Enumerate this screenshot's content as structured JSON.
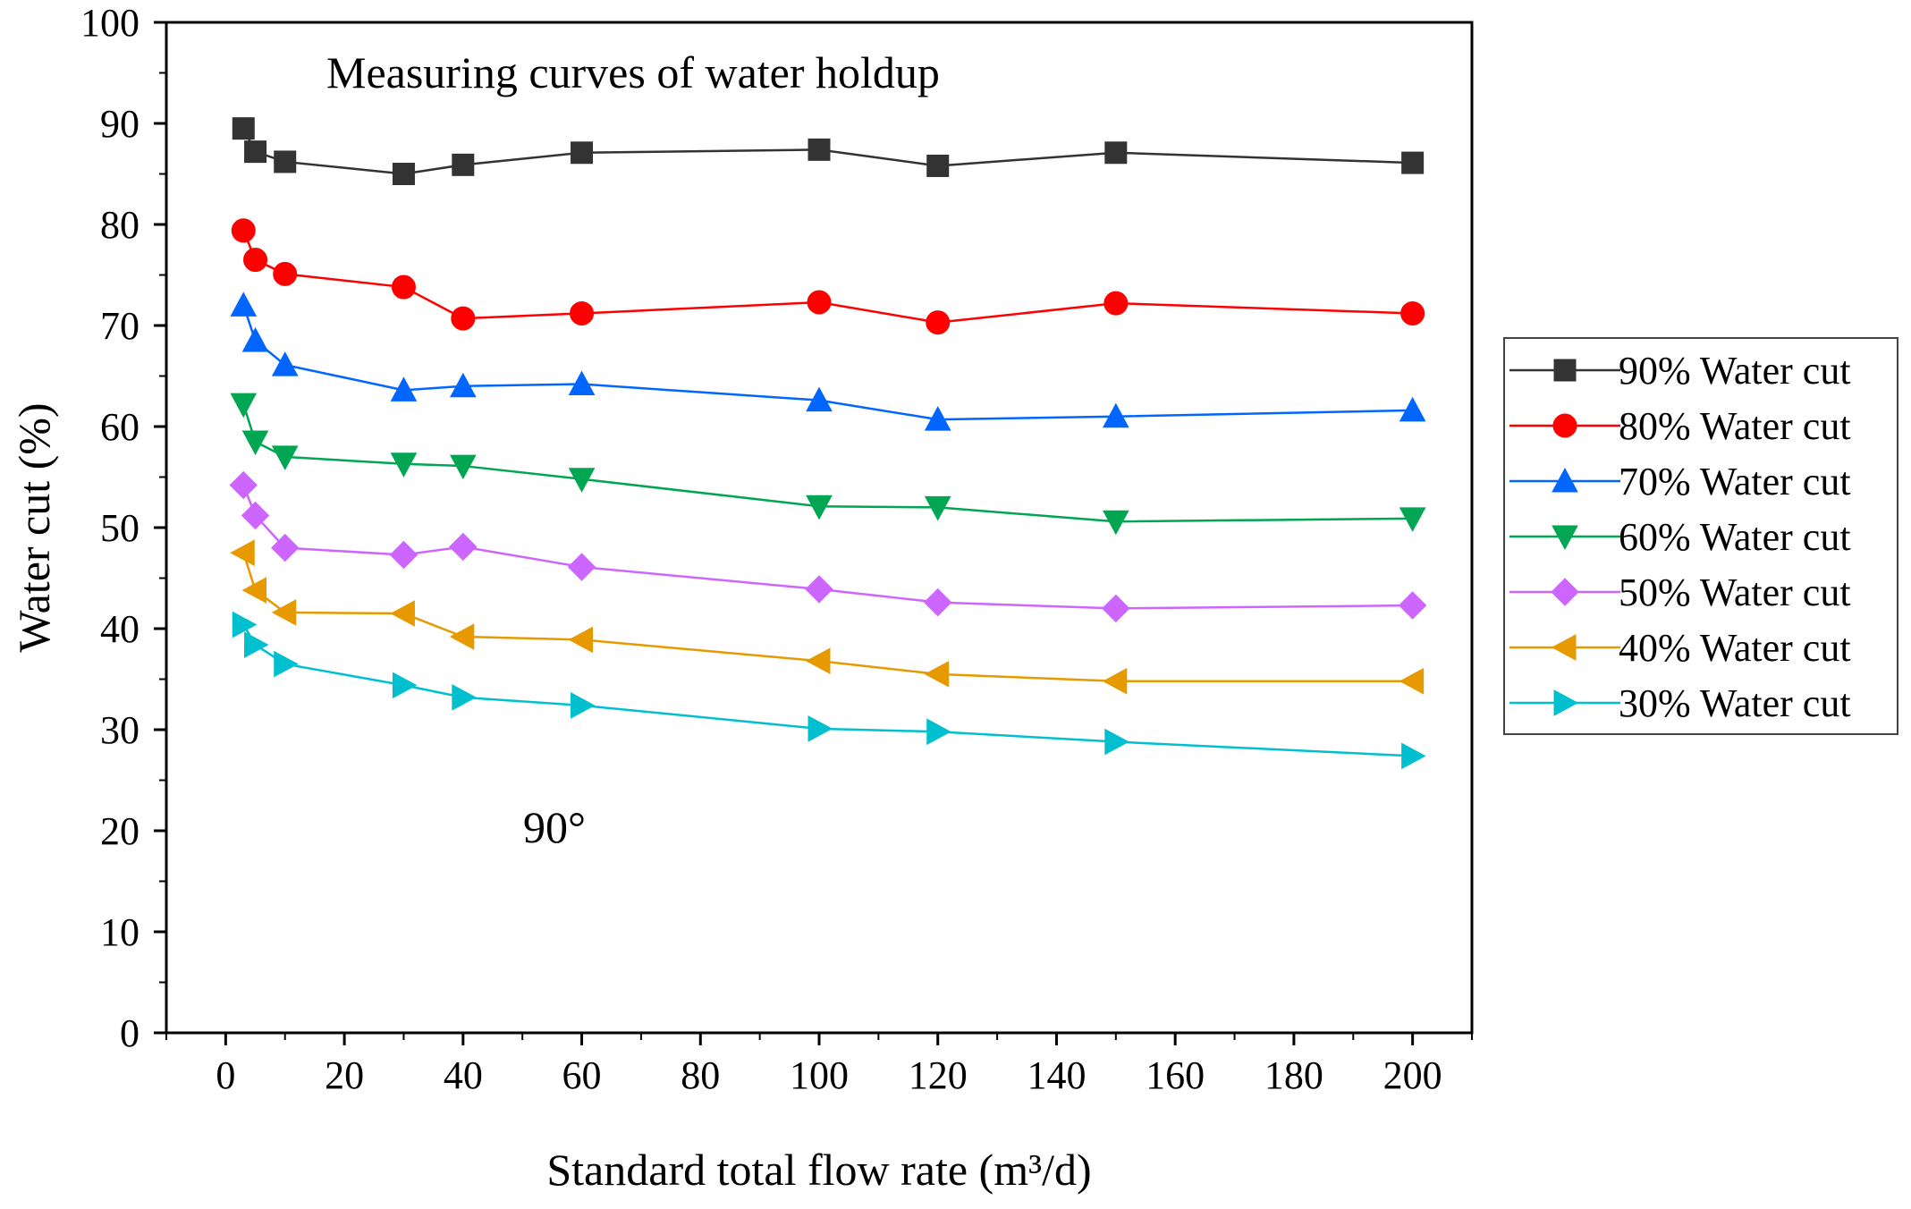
{
  "chart_data": {
    "type": "line",
    "title": "Measuring curves of water holdup",
    "annotation": "90°",
    "xlabel": "Standard total flow rate (m³/d)",
    "ylabel": "Water cut (%)",
    "xlim": [
      -10,
      210
    ],
    "ylim": [
      0,
      100
    ],
    "xticks": [
      0,
      20,
      40,
      60,
      80,
      100,
      120,
      140,
      160,
      180,
      200
    ],
    "yticks": [
      0,
      10,
      20,
      30,
      40,
      50,
      60,
      70,
      80,
      90,
      100
    ],
    "legend_position": "right",
    "x": [
      3,
      5,
      10,
      30,
      40,
      60,
      100,
      120,
      150,
      200
    ],
    "series": [
      {
        "name": "90% Water cut",
        "color": "#333333",
        "marker": "square",
        "values": [
          89.5,
          87.2,
          86.2,
          85.0,
          85.9,
          87.1,
          87.4,
          85.8,
          87.1,
          86.1
        ]
      },
      {
        "name": "80% Water cut",
        "color": "#ff0000",
        "marker": "circle",
        "values": [
          79.4,
          76.5,
          75.1,
          73.8,
          70.7,
          71.2,
          72.3,
          70.3,
          72.2,
          71.2
        ]
      },
      {
        "name": "70% Water cut",
        "color": "#0066ff",
        "marker": "triangle-up",
        "values": [
          72.0,
          68.5,
          66.1,
          63.6,
          64.0,
          64.2,
          62.6,
          60.7,
          61.0,
          61.6
        ]
      },
      {
        "name": "60% Water cut",
        "color": "#00a651",
        "marker": "triangle-down",
        "values": [
          62.2,
          58.5,
          57.0,
          56.3,
          56.1,
          54.8,
          52.1,
          52.0,
          50.6,
          50.9
        ]
      },
      {
        "name": "50% Water cut",
        "color": "#cc66ff",
        "marker": "diamond",
        "values": [
          54.2,
          51.2,
          48.0,
          47.3,
          48.1,
          46.1,
          43.9,
          42.6,
          42.0,
          42.3
        ]
      },
      {
        "name": "40% Water cut",
        "color": "#e69a00",
        "marker": "triangle-left",
        "values": [
          47.5,
          43.8,
          41.6,
          41.5,
          39.2,
          38.9,
          36.8,
          35.5,
          34.8,
          34.8
        ]
      },
      {
        "name": "30% Water cut",
        "color": "#00c0d0",
        "marker": "triangle-right",
        "values": [
          40.4,
          38.4,
          36.5,
          34.4,
          33.2,
          32.4,
          30.1,
          29.8,
          28.8,
          27.4
        ]
      }
    ]
  }
}
